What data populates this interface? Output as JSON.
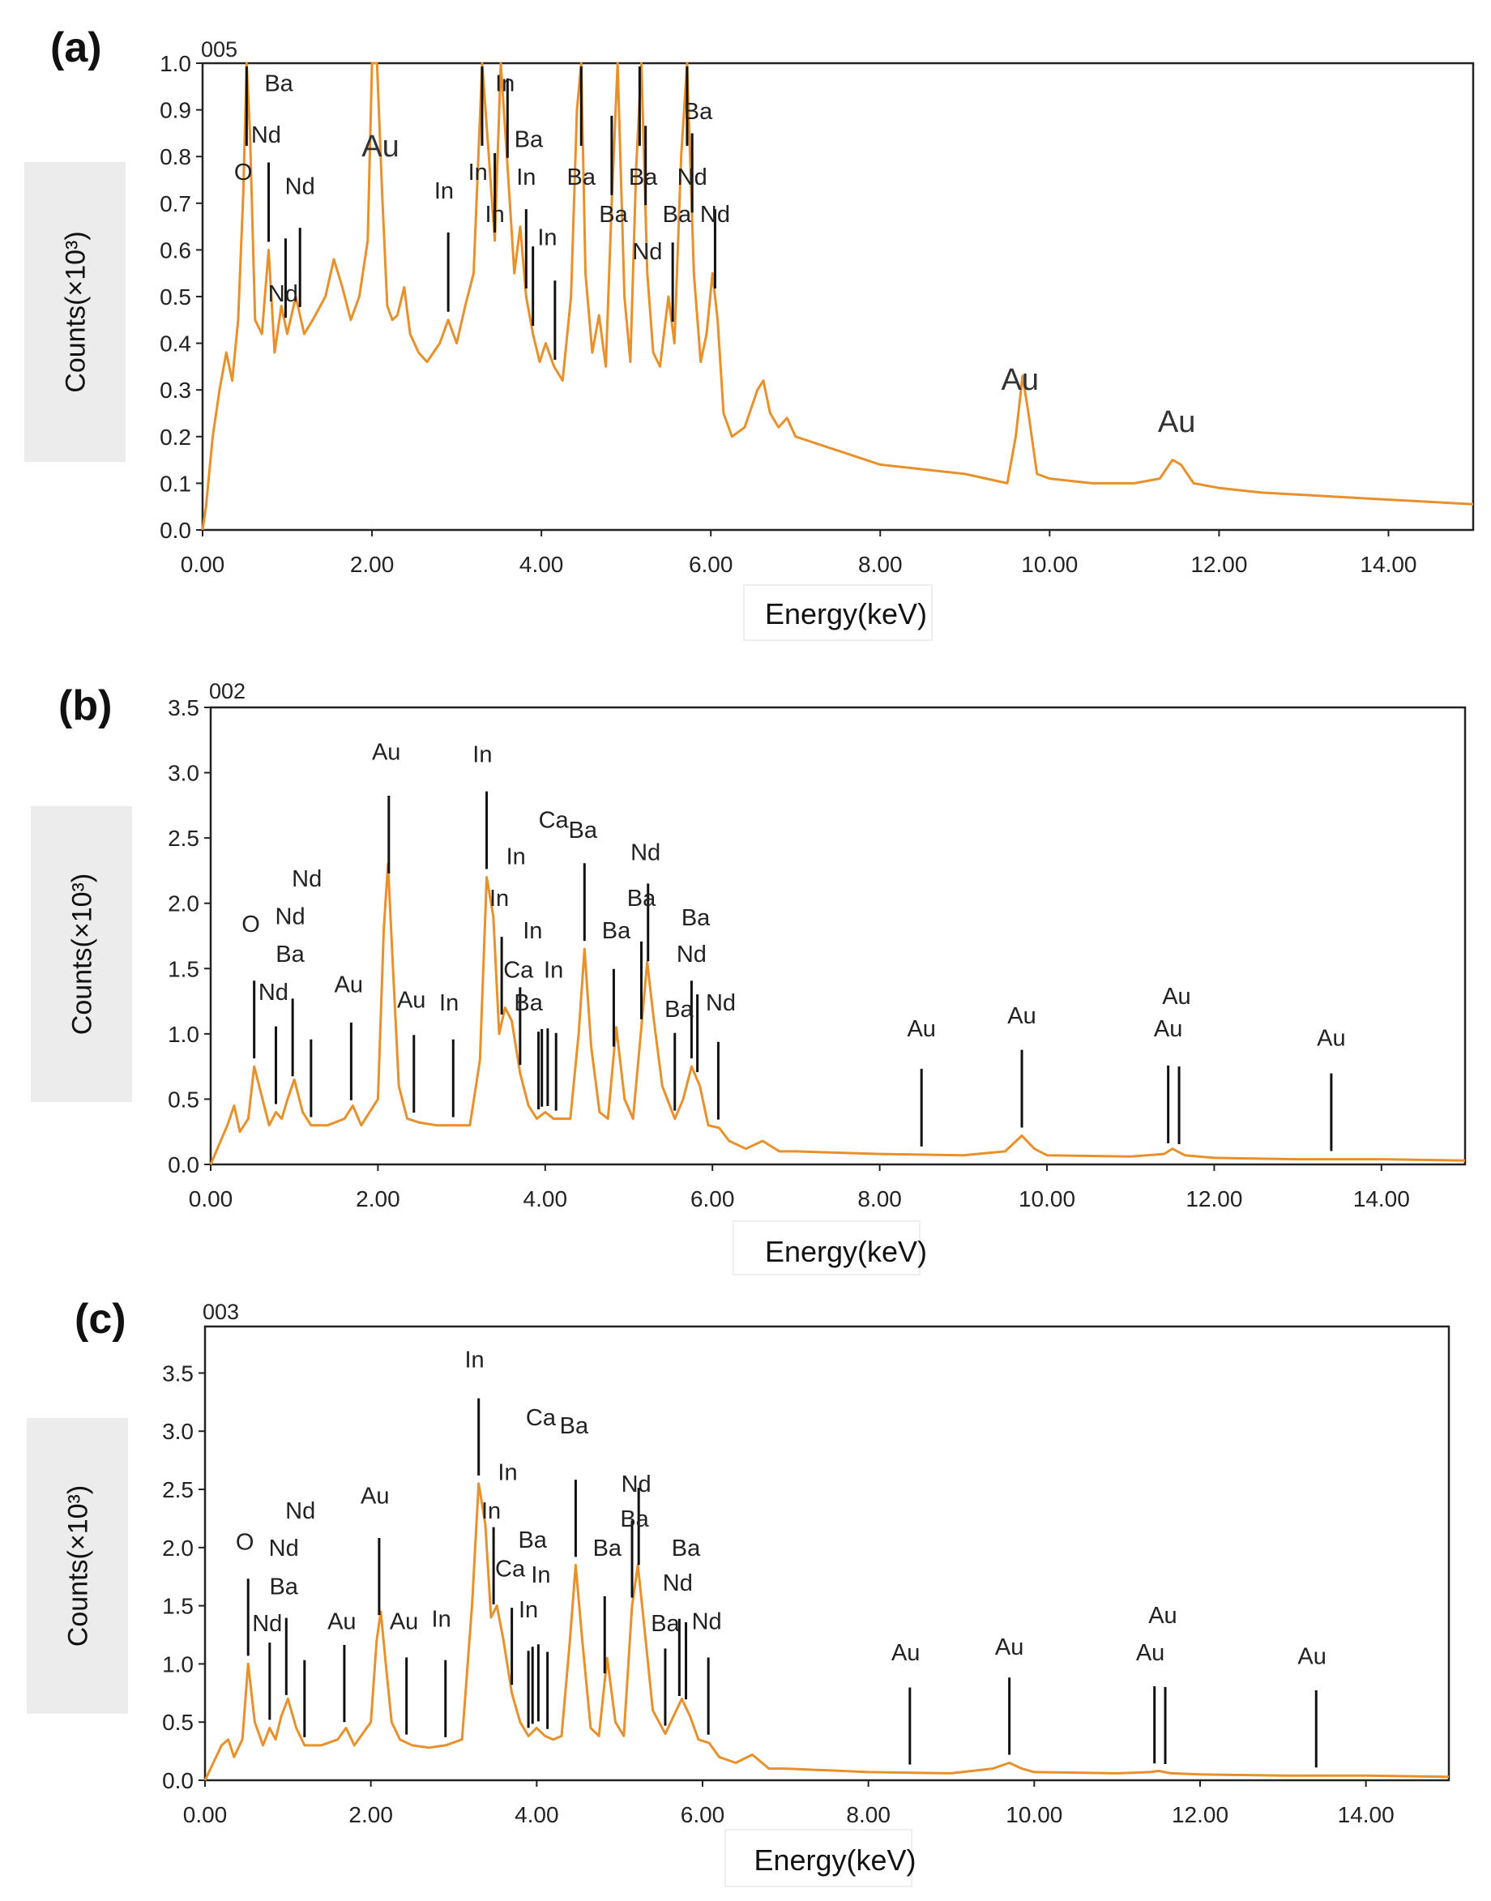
{
  "chart_data": [
    {
      "type": "line",
      "panel_label": "(a)",
      "spectrum_id": "005",
      "xlabel": "Energy(keV)",
      "ylabel": "Counts(×10³)",
      "xlim": [
        0,
        15
      ],
      "ylim": [
        0,
        1.0
      ],
      "xticks": [
        0,
        2,
        4,
        6,
        8,
        10,
        12,
        14
      ],
      "xtick_labels": [
        "0.00",
        "2.00",
        "4.00",
        "6.00",
        "8.00",
        "10.00",
        "12.00",
        "14.00"
      ],
      "yticks": [
        0,
        0.1,
        0.2,
        0.3,
        0.4,
        0.5,
        0.6,
        0.7,
        0.8,
        0.9,
        1.0
      ],
      "ytick_labels": [
        "0.0",
        "0.1",
        "0.2",
        "0.3",
        "0.4",
        "0.5",
        "0.6",
        "0.7",
        "0.8",
        "0.9",
        "1.0"
      ],
      "color": "#E8902A",
      "spectrum": {
        "x": [
          0.0,
          0.04,
          0.12,
          0.2,
          0.28,
          0.35,
          0.42,
          0.48,
          0.52,
          0.56,
          0.62,
          0.7,
          0.78,
          0.85,
          0.93,
          1.0,
          1.1,
          1.2,
          1.3,
          1.45,
          1.55,
          1.65,
          1.75,
          1.85,
          1.95,
          2.0,
          2.06,
          2.12,
          2.18,
          2.24,
          2.3,
          2.38,
          2.45,
          2.55,
          2.65,
          2.8,
          2.9,
          3.0,
          3.1,
          3.2,
          3.3,
          3.38,
          3.45,
          3.52,
          3.6,
          3.68,
          3.75,
          3.82,
          3.9,
          3.98,
          4.05,
          4.15,
          4.25,
          4.35,
          4.42,
          4.47,
          4.52,
          4.6,
          4.68,
          4.76,
          4.83,
          4.9,
          4.98,
          5.05,
          5.12,
          5.18,
          5.25,
          5.32,
          5.4,
          5.5,
          5.57,
          5.65,
          5.72,
          5.8,
          5.88,
          5.95,
          6.02,
          6.08,
          6.15,
          6.25,
          6.4,
          6.55,
          6.62,
          6.7,
          6.8,
          6.9,
          7.0,
          7.5,
          8.0,
          8.5,
          9.0,
          9.5,
          9.6,
          9.68,
          9.75,
          9.85,
          10.0,
          10.5,
          11.0,
          11.3,
          11.45,
          11.55,
          11.7,
          12.0,
          12.5,
          13.0,
          13.5,
          14.0,
          14.5,
          15.0
        ],
        "y": [
          0.0,
          0.05,
          0.2,
          0.3,
          0.38,
          0.32,
          0.45,
          0.72,
          1.0,
          0.85,
          0.45,
          0.42,
          0.6,
          0.38,
          0.48,
          0.42,
          0.5,
          0.42,
          0.45,
          0.5,
          0.58,
          0.52,
          0.45,
          0.5,
          0.62,
          1.0,
          1.0,
          0.72,
          0.48,
          0.45,
          0.46,
          0.52,
          0.42,
          0.38,
          0.36,
          0.4,
          0.45,
          0.4,
          0.48,
          0.55,
          1.0,
          0.8,
          0.62,
          1.0,
          0.78,
          0.55,
          0.65,
          0.5,
          0.42,
          0.36,
          0.4,
          0.35,
          0.32,
          0.5,
          0.9,
          1.0,
          0.55,
          0.38,
          0.46,
          0.35,
          0.7,
          1.0,
          0.5,
          0.36,
          0.78,
          1.0,
          0.55,
          0.38,
          0.35,
          0.5,
          0.4,
          0.8,
          1.0,
          0.55,
          0.36,
          0.42,
          0.55,
          0.45,
          0.25,
          0.2,
          0.22,
          0.3,
          0.32,
          0.25,
          0.22,
          0.24,
          0.2,
          0.17,
          0.14,
          0.13,
          0.12,
          0.1,
          0.2,
          0.33,
          0.25,
          0.12,
          0.11,
          0.1,
          0.1,
          0.11,
          0.15,
          0.14,
          0.1,
          0.09,
          0.08,
          0.075,
          0.07,
          0.065,
          0.06,
          0.055
        ]
      },
      "markers": [
        0.52,
        0.98,
        0.78,
        1.15,
        2.9,
        3.3,
        3.45,
        3.6,
        3.82,
        3.9,
        4.16,
        4.47,
        4.83,
        5.16,
        5.23,
        5.55,
        5.72,
        5.78,
        6.05
      ],
      "annotations": [
        {
          "text": "Ba",
          "x": 0.9,
          "y": 0.94
        },
        {
          "text": "Nd",
          "x": 0.75,
          "y": 0.83
        },
        {
          "text": "O",
          "x": 0.48,
          "y": 0.75
        },
        {
          "text": "Nd",
          "x": 1.15,
          "y": 0.72
        },
        {
          "text": "Nd",
          "x": 0.95,
          "y": 0.49
        },
        {
          "text": "Au",
          "x": 2.1,
          "y": 0.8,
          "big": true
        },
        {
          "text": "In",
          "x": 2.85,
          "y": 0.71
        },
        {
          "text": "In",
          "x": 3.25,
          "y": 0.75
        },
        {
          "text": "In",
          "x": 3.57,
          "y": 0.94
        },
        {
          "text": "Ba",
          "x": 3.85,
          "y": 0.82
        },
        {
          "text": "In",
          "x": 3.82,
          "y": 0.74
        },
        {
          "text": "In",
          "x": 3.45,
          "y": 0.66
        },
        {
          "text": "In",
          "x": 4.07,
          "y": 0.61
        },
        {
          "text": "Ba",
          "x": 4.47,
          "y": 0.74
        },
        {
          "text": "Ba",
          "x": 4.85,
          "y": 0.66
        },
        {
          "text": "Ba",
          "x": 5.2,
          "y": 0.74
        },
        {
          "text": "Ba",
          "x": 5.6,
          "y": 0.66
        },
        {
          "text": "Nd",
          "x": 5.25,
          "y": 0.58
        },
        {
          "text": "Ba",
          "x": 5.85,
          "y": 0.88
        },
        {
          "text": "Nd",
          "x": 5.78,
          "y": 0.74
        },
        {
          "text": "Nd",
          "x": 6.05,
          "y": 0.66
        },
        {
          "text": "Au",
          "x": 9.65,
          "y": 0.3,
          "big": true
        },
        {
          "text": "Au",
          "x": 11.5,
          "y": 0.21,
          "big": true
        }
      ]
    },
    {
      "type": "line",
      "panel_label": "(b)",
      "spectrum_id": "002",
      "xlabel": "Energy(keV)",
      "ylabel": "Counts(×10³)",
      "xlim": [
        0,
        15
      ],
      "ylim": [
        0,
        3.5
      ],
      "xticks": [
        0,
        2,
        4,
        6,
        8,
        10,
        12,
        14
      ],
      "xtick_labels": [
        "0.00",
        "2.00",
        "4.00",
        "6.00",
        "8.00",
        "10.00",
        "12.00",
        "14.00"
      ],
      "yticks": [
        0,
        0.5,
        1.0,
        1.5,
        2.0,
        2.5,
        3.0,
        3.5
      ],
      "ytick_labels": [
        "0.0",
        "0.5",
        "1.0",
        "1.5",
        "2.0",
        "2.5",
        "3.0",
        "3.5"
      ],
      "color": "#E8902A",
      "spectrum": {
        "x": [
          0.0,
          0.1,
          0.2,
          0.28,
          0.35,
          0.45,
          0.52,
          0.6,
          0.7,
          0.78,
          0.85,
          0.92,
          1.0,
          1.1,
          1.2,
          1.4,
          1.6,
          1.7,
          1.8,
          2.0,
          2.07,
          2.12,
          2.18,
          2.25,
          2.35,
          2.5,
          2.7,
          2.9,
          3.1,
          3.22,
          3.3,
          3.38,
          3.45,
          3.52,
          3.6,
          3.7,
          3.8,
          3.9,
          4.0,
          4.1,
          4.2,
          4.3,
          4.4,
          4.47,
          4.55,
          4.65,
          4.75,
          4.85,
          4.95,
          5.05,
          5.15,
          5.22,
          5.3,
          5.4,
          5.55,
          5.65,
          5.75,
          5.85,
          5.95,
          6.08,
          6.2,
          6.4,
          6.6,
          6.8,
          7.0,
          8.0,
          9.0,
          9.5,
          9.7,
          9.85,
          10.0,
          11.0,
          11.4,
          11.5,
          11.65,
          12.0,
          13.0,
          14.0,
          15.0
        ],
        "y": [
          0.0,
          0.15,
          0.3,
          0.45,
          0.25,
          0.35,
          0.75,
          0.55,
          0.3,
          0.4,
          0.35,
          0.5,
          0.65,
          0.4,
          0.3,
          0.3,
          0.35,
          0.45,
          0.3,
          0.5,
          1.8,
          2.3,
          1.5,
          0.6,
          0.35,
          0.32,
          0.3,
          0.3,
          0.3,
          0.8,
          2.2,
          1.9,
          1.0,
          1.2,
          1.1,
          0.7,
          0.45,
          0.35,
          0.4,
          0.35,
          0.35,
          0.35,
          1.0,
          1.65,
          0.9,
          0.4,
          0.35,
          1.05,
          0.5,
          0.35,
          1.05,
          1.55,
          1.1,
          0.6,
          0.35,
          0.5,
          0.75,
          0.6,
          0.3,
          0.28,
          0.18,
          0.12,
          0.18,
          0.1,
          0.1,
          0.08,
          0.07,
          0.1,
          0.22,
          0.12,
          0.07,
          0.06,
          0.08,
          0.12,
          0.07,
          0.05,
          0.04,
          0.04,
          0.03
        ]
      },
      "markers": [
        0.52,
        0.78,
        0.98,
        1.2,
        1.68,
        2.13,
        2.43,
        2.9,
        3.3,
        3.48,
        3.7,
        3.92,
        3.96,
        4.03,
        4.13,
        4.47,
        4.82,
        5.15,
        5.23,
        5.55,
        5.75,
        5.82,
        6.07,
        8.5,
        9.7,
        11.45,
        11.58,
        13.4
      ],
      "annotations": [
        {
          "text": "O",
          "x": 0.48,
          "y": 1.78
        },
        {
          "text": "Nd",
          "x": 0.95,
          "y": 1.84
        },
        {
          "text": "Nd",
          "x": 1.15,
          "y": 2.13
        },
        {
          "text": "Ba",
          "x": 0.95,
          "y": 1.55
        },
        {
          "text": "Nd",
          "x": 0.75,
          "y": 1.26
        },
        {
          "text": "Au",
          "x": 1.65,
          "y": 1.32
        },
        {
          "text": "Au",
          "x": 2.1,
          "y": 3.1
        },
        {
          "text": "Au",
          "x": 2.4,
          "y": 1.2
        },
        {
          "text": "In",
          "x": 2.85,
          "y": 1.18
        },
        {
          "text": "In",
          "x": 3.25,
          "y": 3.08
        },
        {
          "text": "In",
          "x": 3.65,
          "y": 2.3
        },
        {
          "text": "In",
          "x": 3.45,
          "y": 1.98
        },
        {
          "text": "Ca",
          "x": 3.68,
          "y": 1.43
        },
        {
          "text": "In",
          "x": 3.85,
          "y": 1.73
        },
        {
          "text": "In",
          "x": 4.1,
          "y": 1.43
        },
        {
          "text": "Ba",
          "x": 3.8,
          "y": 1.18
        },
        {
          "text": "Ca",
          "x": 4.1,
          "y": 2.58
        },
        {
          "text": "Ba",
          "x": 4.45,
          "y": 2.5
        },
        {
          "text": "Ba",
          "x": 4.85,
          "y": 1.73
        },
        {
          "text": "Nd",
          "x": 5.2,
          "y": 2.33
        },
        {
          "text": "Ba",
          "x": 5.15,
          "y": 1.98
        },
        {
          "text": "Ba",
          "x": 5.6,
          "y": 1.13
        },
        {
          "text": "Ba",
          "x": 5.8,
          "y": 1.83
        },
        {
          "text": "Nd",
          "x": 5.75,
          "y": 1.55
        },
        {
          "text": "Nd",
          "x": 6.1,
          "y": 1.18
        },
        {
          "text": "Au",
          "x": 8.5,
          "y": 0.98
        },
        {
          "text": "Au",
          "x": 9.7,
          "y": 1.08
        },
        {
          "text": "Au",
          "x": 11.55,
          "y": 1.23
        },
        {
          "text": "Au",
          "x": 11.45,
          "y": 0.98
        },
        {
          "text": "Au",
          "x": 13.4,
          "y": 0.91
        }
      ]
    },
    {
      "type": "line",
      "panel_label": "(c)",
      "spectrum_id": "003",
      "xlabel": "Energy(keV)",
      "ylabel": "Counts(×10³)",
      "xlim": [
        0,
        15
      ],
      "ylim": [
        0,
        3.9
      ],
      "xticks": [
        0,
        2,
        4,
        6,
        8,
        10,
        12,
        14
      ],
      "xtick_labels": [
        "0.00",
        "2.00",
        "4.00",
        "6.00",
        "8.00",
        "10.00",
        "12.00",
        "14.00"
      ],
      "yticks": [
        0,
        0.5,
        1.0,
        1.5,
        2.0,
        2.5,
        3.0,
        3.5
      ],
      "ytick_labels": [
        "0.0",
        "0.5",
        "1.0",
        "1.5",
        "2.0",
        "2.5",
        "3.0",
        "3.5"
      ],
      "color": "#E8902A",
      "spectrum": {
        "x": [
          0.0,
          0.1,
          0.2,
          0.28,
          0.35,
          0.45,
          0.52,
          0.6,
          0.7,
          0.78,
          0.85,
          0.92,
          1.0,
          1.1,
          1.2,
          1.4,
          1.6,
          1.7,
          1.8,
          2.0,
          2.07,
          2.12,
          2.18,
          2.25,
          2.35,
          2.5,
          2.7,
          2.9,
          3.1,
          3.22,
          3.3,
          3.38,
          3.45,
          3.52,
          3.6,
          3.7,
          3.8,
          3.9,
          4.0,
          4.1,
          4.2,
          4.3,
          4.4,
          4.47,
          4.55,
          4.65,
          4.75,
          4.85,
          4.95,
          5.05,
          5.15,
          5.22,
          5.3,
          5.4,
          5.55,
          5.65,
          5.75,
          5.85,
          5.95,
          6.08,
          6.2,
          6.4,
          6.6,
          6.8,
          7.0,
          8.0,
          9.0,
          9.5,
          9.7,
          9.85,
          10.0,
          11.0,
          11.4,
          11.5,
          11.65,
          12.0,
          13.0,
          14.0,
          15.0
        ],
        "y": [
          0.0,
          0.15,
          0.3,
          0.35,
          0.2,
          0.35,
          1.0,
          0.5,
          0.3,
          0.45,
          0.35,
          0.55,
          0.7,
          0.45,
          0.3,
          0.3,
          0.35,
          0.45,
          0.3,
          0.5,
          1.2,
          1.45,
          1.0,
          0.5,
          0.35,
          0.3,
          0.28,
          0.3,
          0.35,
          1.5,
          2.55,
          2.2,
          1.4,
          1.5,
          1.2,
          0.75,
          0.5,
          0.38,
          0.45,
          0.38,
          0.35,
          0.38,
          1.2,
          1.85,
          1.2,
          0.45,
          0.38,
          1.05,
          0.5,
          0.38,
          1.5,
          1.85,
          1.3,
          0.6,
          0.4,
          0.55,
          0.7,
          0.55,
          0.35,
          0.32,
          0.2,
          0.15,
          0.22,
          0.1,
          0.1,
          0.07,
          0.06,
          0.1,
          0.15,
          0.1,
          0.07,
          0.06,
          0.07,
          0.08,
          0.06,
          0.05,
          0.04,
          0.04,
          0.03
        ]
      },
      "markers": [
        0.52,
        0.78,
        0.98,
        1.2,
        1.68,
        2.1,
        2.43,
        2.9,
        3.3,
        3.48,
        3.7,
        3.9,
        3.95,
        4.02,
        4.13,
        4.47,
        4.82,
        5.15,
        5.23,
        5.55,
        5.72,
        5.8,
        6.07,
        8.5,
        9.7,
        11.45,
        11.58,
        13.4
      ],
      "annotations": [
        {
          "text": "O",
          "x": 0.48,
          "y": 1.98
        },
        {
          "text": "Nd",
          "x": 0.95,
          "y": 1.93
        },
        {
          "text": "Nd",
          "x": 1.15,
          "y": 2.25
        },
        {
          "text": "Ba",
          "x": 0.95,
          "y": 1.6
        },
        {
          "text": "Nd",
          "x": 0.75,
          "y": 1.28
        },
        {
          "text": "Au",
          "x": 1.65,
          "y": 1.3
        },
        {
          "text": "Au",
          "x": 2.05,
          "y": 2.38
        },
        {
          "text": "Au",
          "x": 2.4,
          "y": 1.3
        },
        {
          "text": "In",
          "x": 2.85,
          "y": 1.32
        },
        {
          "text": "In",
          "x": 3.25,
          "y": 3.55
        },
        {
          "text": "In",
          "x": 3.65,
          "y": 2.58
        },
        {
          "text": "In",
          "x": 3.45,
          "y": 2.25
        },
        {
          "text": "Ca",
          "x": 3.68,
          "y": 1.75
        },
        {
          "text": "In",
          "x": 4.05,
          "y": 1.7
        },
        {
          "text": "Ba",
          "x": 3.95,
          "y": 2.0
        },
        {
          "text": "In",
          "x": 3.9,
          "y": 1.4
        },
        {
          "text": "Ca",
          "x": 4.05,
          "y": 3.05
        },
        {
          "text": "Ba",
          "x": 4.45,
          "y": 2.98
        },
        {
          "text": "Ba",
          "x": 4.85,
          "y": 1.93
        },
        {
          "text": "Nd",
          "x": 5.2,
          "y": 2.48
        },
        {
          "text": "Ba",
          "x": 5.18,
          "y": 2.18
        },
        {
          "text": "Ba",
          "x": 5.55,
          "y": 1.28
        },
        {
          "text": "Ba",
          "x": 5.8,
          "y": 1.93
        },
        {
          "text": "Nd",
          "x": 5.7,
          "y": 1.63
        },
        {
          "text": "Nd",
          "x": 6.05,
          "y": 1.3
        },
        {
          "text": "Au",
          "x": 8.45,
          "y": 1.03
        },
        {
          "text": "Au",
          "x": 9.7,
          "y": 1.08
        },
        {
          "text": "Au",
          "x": 11.55,
          "y": 1.35
        },
        {
          "text": "Au",
          "x": 11.4,
          "y": 1.03
        },
        {
          "text": "Au",
          "x": 13.35,
          "y": 1.0
        }
      ]
    }
  ]
}
